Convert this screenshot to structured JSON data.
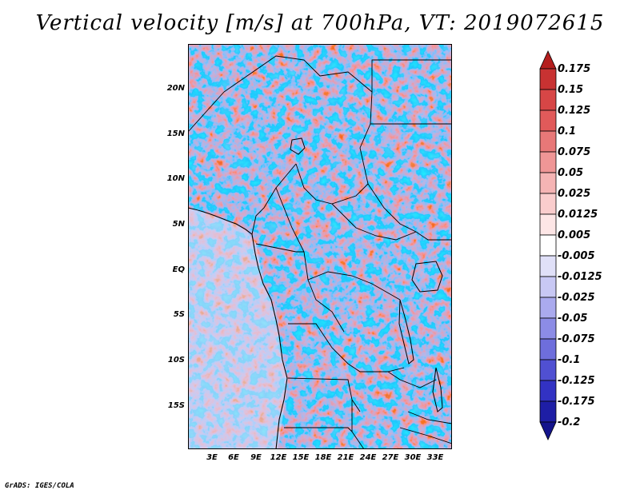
{
  "title": "Vertical velocity [m/s] at 700hPa, VT: 2019072615",
  "footer": "GrADS: IGES/COLA",
  "lat_labels": [
    "20N",
    "15N",
    "10N",
    "5N",
    "EQ",
    "5S",
    "10S",
    "15S"
  ],
  "lon_labels": [
    "3E",
    "6E",
    "9E",
    "12E",
    "15E",
    "18E",
    "21E",
    "24E",
    "27E",
    "30E",
    "33E"
  ],
  "colorbar": {
    "labels": [
      "0.175",
      "0.15",
      "0.125",
      "0.1",
      "0.075",
      "0.05",
      "0.025",
      "0.0125",
      "0.005",
      "-0.005",
      "-0.0125",
      "-0.025",
      "-0.05",
      "-0.075",
      "-0.1",
      "-0.125",
      "-0.175",
      "-0.2"
    ],
    "colors": [
      "#b41e1e",
      "#c83232",
      "#d74646",
      "#e15a5a",
      "#e87878",
      "#ef9696",
      "#f5b4b4",
      "#facdcd",
      "#fde6e6",
      "#ffffff",
      "#e0e0f8",
      "#c8c8f4",
      "#aaaaee",
      "#8c8ce6",
      "#6e6edc",
      "#5050d2",
      "#3232c3",
      "#1e1ea5",
      "#14148c"
    ]
  }
}
